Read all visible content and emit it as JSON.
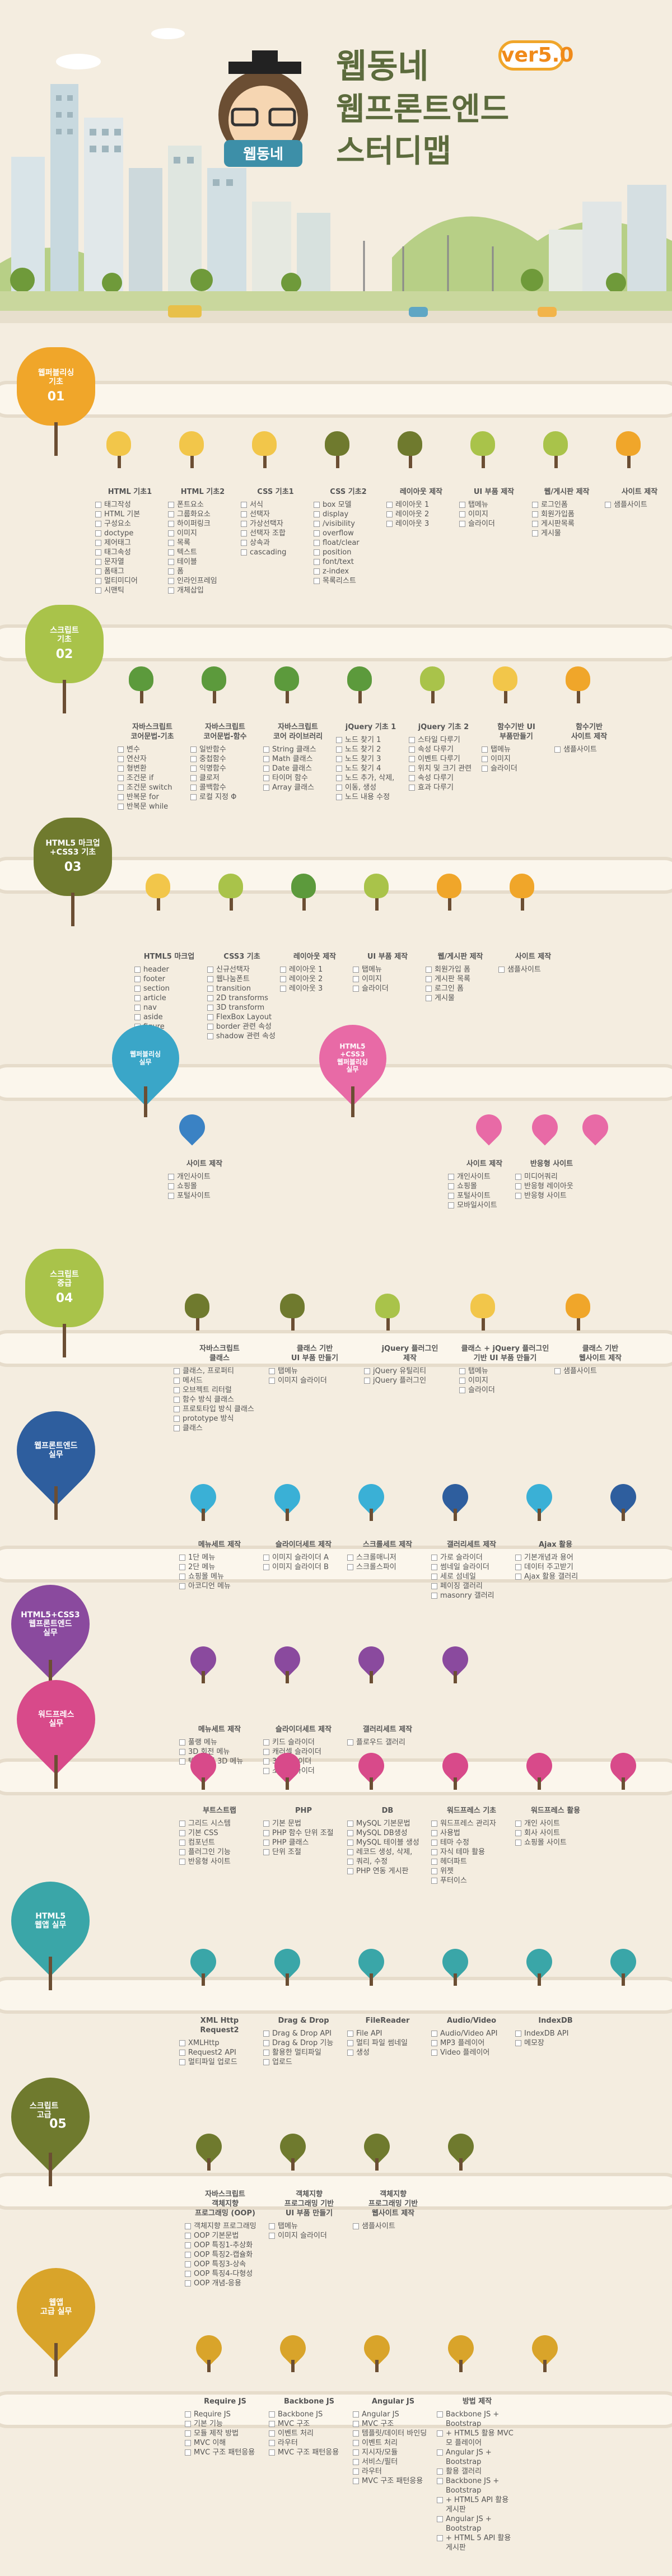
{
  "header": {
    "logo_text": "웹동네",
    "title_line1": "웹동네",
    "title_line2": "웹프론트엔드",
    "title_line3": "스터디맵",
    "version": "ver5.0"
  },
  "colors": {
    "bg": "#f4ede0",
    "road": "#fbf6ec",
    "orange": "#f0a62a",
    "olive": "#6f7a2e",
    "lime": "#a9c34a",
    "yellow": "#f2c64a",
    "green": "#5c9a3c",
    "pink": "#e86aa6",
    "blue": "#3a82c4",
    "purple": "#8a4a9e",
    "teal": "#3aa6a8",
    "brown": "#7a5a2e"
  },
  "sections": [
    {
      "key": "s1",
      "badge": "웹퍼블리싱\n기초",
      "num": "01",
      "color": "#f0a62a",
      "cols": [
        {
          "h": "HTML 기초1",
          "items": [
            "태그작성",
            "HTML 기본",
            "구성요소",
            "doctype",
            "제어태그",
            "태그속성",
            "문자열",
            "폼태그",
            "멀티미디어",
            "시맨틱"
          ]
        },
        {
          "h": "HTML 기초2",
          "items": [
            "폰트요소",
            "그룹화요소",
            "하이퍼링크",
            "이미지",
            "목록",
            "텍스트",
            "테이블",
            "폼",
            "인라인프레임",
            "개체삽입"
          ]
        },
        {
          "h": "CSS 기초1",
          "items": [
            "서식",
            "선택자",
            "가상선택자",
            "선택자 조합",
            "상속과",
            "cascading"
          ]
        },
        {
          "h": "CSS 기초2",
          "items": [
            "box 모델",
            "display",
            "/visibility",
            "overflow",
            "float/clear",
            "position",
            "font/text",
            "z-index",
            "목록리스트"
          ]
        },
        {
          "h": "레이아웃 제작",
          "items": [
            "레이아웃 1",
            "레이아웃 2",
            "레이아웃 3"
          ]
        },
        {
          "h": "UI 부품 제작",
          "items": [
            "탭메뉴",
            "이미지",
            "슬라이더"
          ]
        },
        {
          "h": "웹/게시판 제작",
          "items": [
            "로그인폼",
            "회원가입폼",
            "게시판목록",
            "게시물"
          ]
        },
        {
          "h": "사이트 제작",
          "items": [
            "샘플사이트"
          ]
        }
      ]
    },
    {
      "key": "s2",
      "badge": "스크립트\n기초",
      "num": "02",
      "color": "#a9c34a",
      "cols": [
        {
          "h": "자바스크립트\n코어문법-기초",
          "items": [
            "변수",
            "연산자",
            "형변환",
            "조건문 if",
            "조건문 switch",
            "반복문 for",
            "반복문 while"
          ]
        },
        {
          "h": "자바스크립트\n코어문법-함수",
          "items": [
            "일반함수",
            "중첩함수",
            "익명함수",
            "클로저",
            "콜백함수",
            "로컬 지정 Φ"
          ]
        },
        {
          "h": "자바스크립트\n코어 라이브러리",
          "items": [
            "String 클래스",
            "Math 클래스",
            "Date 클래스",
            "타이머 함수",
            "Array 클래스"
          ]
        },
        {
          "h": "jQuery 기초 1",
          "items": [
            "노드 찾기 1",
            "노드 찾기 2",
            "노드 찾기 3",
            "노드 찾기 4",
            "노드 추가, 삭제,",
            "이동, 생성",
            "노드 내용 수정"
          ]
        },
        {
          "h": "jQuery 기초 2",
          "items": [
            "스타일 다루기",
            "속성 다루기",
            "이벤트 다루기",
            "위치 및 크기 관련",
            "속성 다루기",
            "효과 다루기"
          ]
        },
        {
          "h": "함수기반 UI\n부품만들기",
          "items": [
            "탭메뉴",
            "이미지",
            "슬라이더"
          ]
        },
        {
          "h": "함수기반\n사이트 제작",
          "items": [
            "샘플사이트"
          ]
        }
      ]
    },
    {
      "key": "s3",
      "badge": "HTML5 마크업\n+CSS3 기초",
      "num": "03",
      "color": "#6f7a2e",
      "cols": [
        {
          "h": "HTML5 마크업",
          "items": [
            "header",
            "footer",
            "section",
            "article",
            "nav",
            "aside",
            "figure"
          ]
        },
        {
          "h": "CSS3 기초",
          "items": [
            "신규선택자",
            "웹나눔폰트",
            "transition",
            "2D transforms",
            "3D transform",
            "FlexBox Layout",
            "border 관련 속성",
            "shadow 관련 속성"
          ]
        },
        {
          "h": "레이아웃 제작",
          "items": [
            "레이아웃 1",
            "레이아웃 2",
            "레이아웃 3"
          ]
        },
        {
          "h": "UI 부품 제작",
          "items": [
            "탭메뉴",
            "이미지",
            "슬라이더"
          ]
        },
        {
          "h": "웹/게시판 제작",
          "items": [
            "회원가입 폼",
            "게시판 목록",
            "로그인 폼",
            "게시물"
          ]
        },
        {
          "h": "사이트 제작",
          "items": [
            "샘플사이트"
          ]
        }
      ]
    },
    {
      "key": "s3b",
      "badge1": "웹퍼블리싱\n실무",
      "badge2": "HTML5\n+CSS3\n웹퍼블리싱\n실무",
      "cols": [
        {
          "h": "사이트 제작",
          "items": [
            "개인사이트",
            "쇼핑몰",
            "포털사이트"
          ]
        },
        {
          "h": "사이트 제작",
          "items": [
            "개인사이트",
            "쇼핑몰",
            "포털사이트",
            "모바일사이트"
          ]
        },
        {
          "h": "반응형 사이트",
          "items": [
            "미디어쿼리",
            "반응형 레이아웃",
            "반응형 사이트"
          ]
        }
      ]
    },
    {
      "key": "s4",
      "badge": "스크립트\n중급",
      "num": "04",
      "color": "#a9c34a",
      "cols": [
        {
          "h": "자바스크립트\n클래스",
          "items": [
            "클래스, 프로퍼티",
            "메서드",
            "오브젝트 리터럴",
            "함수 방식 클래스",
            "프로토타입 방식 클래스",
            "prototype 방식",
            "클래스"
          ]
        },
        {
          "h": "클래스 기반\nUI 부품 만들기",
          "items": [
            "탭메뉴",
            "이미지 슬라이더"
          ]
        },
        {
          "h": "jQuery 플러그인\n제작",
          "items": [
            "jQuery 유틸리티",
            "jQuery 플러그인"
          ]
        },
        {
          "h": "클래스 + jQuery 플러그인\n기반 UI 부품 만들기",
          "items": [
            "탭메뉴",
            "이미지",
            "슬라이더"
          ]
        },
        {
          "h": "클래스 기반\n웹사이트 제작",
          "items": [
            "샘플사이트"
          ]
        }
      ]
    },
    {
      "key": "s5",
      "badge": "웹프론트엔드\n실무",
      "cols": [
        {
          "h": "메뉴세트 제작",
          "items": [
            "1단 메뉴",
            "2단 메뉴",
            "쇼핑몰 메뉴",
            "아코디언 메뉴"
          ]
        },
        {
          "h": "슬라이더세트 제작",
          "items": [
            "이미지 슬라이더 A",
            "이미지 슬라이더 B"
          ]
        },
        {
          "h": "스크롤세트 제작",
          "items": [
            "스크롤매니저",
            "스크롤스파이"
          ]
        },
        {
          "h": "갤러리세트 제작",
          "items": [
            "가로 슬라이더",
            "썸네일 슬라이더",
            "세로 섬네일",
            "페이징 갤러리",
            "masonry 갤러리"
          ]
        },
        {
          "h": "Ajax 활용",
          "items": [
            "기본개념과 용어",
            "데이터 주고받기",
            "Ajax 활용 갤러리"
          ]
        }
      ]
    },
    {
      "key": "s6",
      "badge": "HTML5+CSS3\n웹프론트엔드\n실무",
      "cols": [
        {
          "h": "메뉴세트 제작",
          "items": [
            "풀랭 메뉴",
            "3D 회전 메뉴",
            "텍스트형 3D 메뉴"
          ]
        },
        {
          "h": "슬라이더세트 제작",
          "items": [
            "키드 슬라이더",
            "캐러셀 슬라이더",
            "3D 슬라이더",
            "소셜 슬라이더"
          ]
        },
        {
          "h": "갤러리세트 제작",
          "items": [
            "플로우드 갤러리"
          ]
        }
      ]
    },
    {
      "key": "s7",
      "badge": "워드프레스\n실무",
      "cols": [
        {
          "h": "부트스트랩",
          "items": [
            "그리드 시스템",
            "기본 CSS",
            "컴포넌트",
            "플러그인 기능",
            "반응형 사이트"
          ]
        },
        {
          "h": "PHP",
          "items": [
            "기본 문법",
            "PHP 함수 단위 조절",
            "PHP 클래스",
            "단위 조절"
          ]
        },
        {
          "h": "DB",
          "items": [
            "MySQL 기본문법",
            "MySQL DB생성",
            "MySQL 테이블 생성",
            "레코드 생성, 삭제,",
            "쿼리, 수정",
            "PHP 연동 게시판"
          ]
        },
        {
          "h": "워드프레스 기초",
          "items": [
            "워드프레스 관리자",
            "사용법",
            "테마 수정",
            "자식 테마 활용",
            "헤더파트",
            "위젯",
            "푸터이스"
          ]
        },
        {
          "h": "워드프레스 활용",
          "items": [
            "개인 사이트",
            "회사 사이트",
            "쇼핑몰 사이트"
          ]
        }
      ]
    },
    {
      "key": "s8",
      "badge": "HTML5\n웹앱 실무",
      "cols": [
        {
          "h": "XML Http\nRequest2",
          "items": [
            "XMLHttp",
            "Request2 API",
            "멀티파일 업로드"
          ]
        },
        {
          "h": "Drag & Drop",
          "items": [
            "Drag & Drop API",
            "Drag & Drop 기능",
            "활용한 멀티파일",
            "업로드"
          ]
        },
        {
          "h": "FileReader",
          "items": [
            "File API",
            "멀티 파일 썸네일",
            "생성"
          ]
        },
        {
          "h": "Audio/Video",
          "items": [
            "Audio/Video API",
            "MP3 플레이어",
            "Video 플레이어"
          ]
        },
        {
          "h": "IndexDB",
          "items": [
            "IndexDB API",
            "메모장"
          ]
        }
      ]
    },
    {
      "key": "s9",
      "badge": "스크립트\n고급",
      "num": "05",
      "color": "#6f7a2e",
      "cols": [
        {
          "h": "자바스크립트\n객체지향\n프로그래밍 (OOP)",
          "items": [
            "객체지향 프로그래밍",
            "OOP 기본문법",
            "OOP 특징1-추상화",
            "OOP 특징2-캡슐화",
            "OOP 특징3-상속",
            "OOP 특징4-다형성",
            "OOP 개념-응용"
          ]
        },
        {
          "h": "객체지향\n프로그래밍 기반\nUI 부품 만들기",
          "items": [
            "탭메뉴",
            "이미지 슬라이더"
          ]
        },
        {
          "h": "객체지향\n프로그래밍 기반\n웹사이트 제작",
          "items": [
            "샘플사이트"
          ]
        }
      ]
    },
    {
      "key": "s10",
      "badge": "웹앱\n고급 실무",
      "color": "#f2c64a",
      "cols": [
        {
          "h": "Require JS",
          "items": [
            "Require JS",
            "기본 기능",
            "모듈 제작 방법",
            "MVC 이해",
            "MVC 구조 패턴응용"
          ]
        },
        {
          "h": "Backbone JS",
          "items": [
            "Backbone JS",
            "MVC 구조",
            "이벤트 처리",
            "라우터",
            "MVC 구조 패턴응용"
          ]
        },
        {
          "h": "Angular JS",
          "items": [
            "Angular JS",
            "MVC 구조",
            "템플릿/데이터 바인딩",
            "이벤트 처리",
            "지시자/모듈",
            "서비스/필터",
            "라우터",
            "MVC 구조 패턴응용"
          ]
        },
        {
          "h": "방법 제작",
          "items": [
            "Backbone JS + Bootstrap",
            "+ HTML5 활용 MVC모 플레이어",
            "Angular JS + Bootstrap",
            "활용 갤러리",
            "Backbone JS + Bootstrap",
            "+ HTML5 API 활용 게시판",
            "Angular JS + Bootstrap",
            "+ HTML 5 API 활용 게시판"
          ]
        }
      ]
    }
  ]
}
